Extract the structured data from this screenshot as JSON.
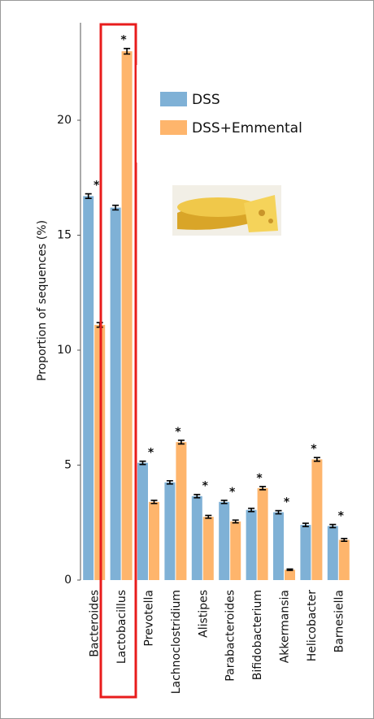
{
  "chart_data": {
    "type": "bar",
    "y_label": "Proportion of sequences (%)",
    "categories": [
      "Bacteroides",
      "Lactobacillus",
      "Prevotella",
      "Lachnoclostridium",
      "Alistipes",
      "Parabacteroides",
      "Bifidobacterium",
      "Akkermansia",
      "Helicobacter",
      "Barnesiella"
    ],
    "series": [
      {
        "name": "DSS",
        "color": "#7fb1d6",
        "values": [
          16.7,
          16.2,
          5.1,
          4.25,
          3.65,
          3.4,
          3.05,
          2.95,
          2.4,
          2.35
        ],
        "errors": [
          0.1,
          0.1,
          0.07,
          0.07,
          0.07,
          0.07,
          0.07,
          0.07,
          0.07,
          0.07
        ]
      },
      {
        "name": "DSS+Emmental",
        "color": "#feb56c",
        "values": [
          11.1,
          23.0,
          3.4,
          6.0,
          2.75,
          2.55,
          4.0,
          0.45,
          5.25,
          1.75
        ],
        "errors": [
          0.1,
          0.12,
          0.07,
          0.08,
          0.06,
          0.06,
          0.07,
          0.03,
          0.08,
          0.06
        ]
      }
    ],
    "annotations": [
      "*",
      "*",
      "*",
      "*",
      "*",
      "*",
      "*",
      "*",
      "*",
      "*"
    ],
    "ylim": [
      0,
      24
    ],
    "yticks": [
      0,
      5,
      10,
      15,
      20
    ]
  }
}
